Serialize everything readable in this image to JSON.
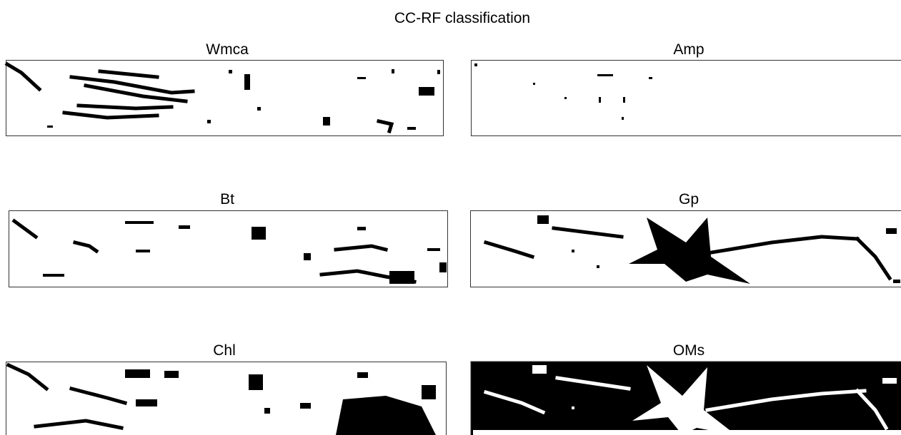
{
  "header": {
    "title": "CC-RF classification"
  },
  "panels": [
    {
      "title": "Wmca"
    },
    {
      "title": "Amp"
    },
    {
      "title": "Bt"
    },
    {
      "title": "Gp"
    },
    {
      "title": "Chl"
    },
    {
      "title": "OMs"
    }
  ]
}
